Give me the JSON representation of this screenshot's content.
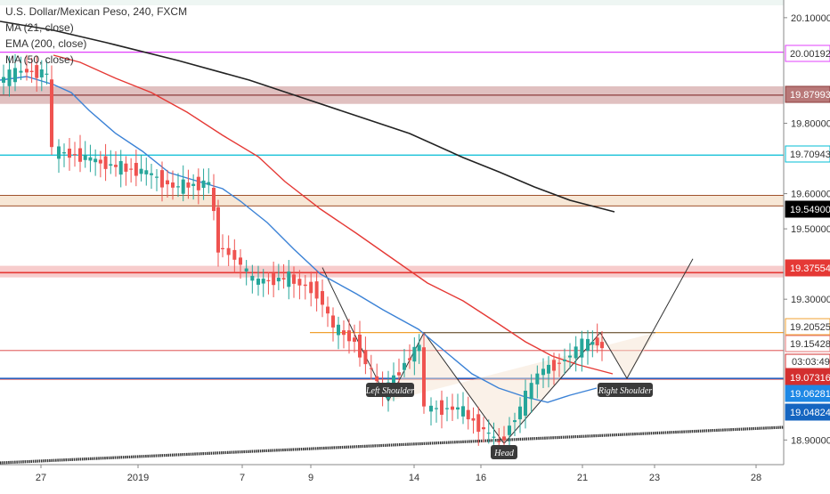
{
  "header": {
    "title": "U.S. Dollar/Mexican Peso, 240, FXCM"
  },
  "indicators": [
    {
      "label": "MA (21, close)",
      "color": "#e53935"
    },
    {
      "label": "EMA (200, close)",
      "color": "#222222"
    },
    {
      "label": "MA (50, close)",
      "color": "#1e88e5"
    }
  ],
  "chart_data": {
    "type": "candlestick",
    "x_ticks": [
      "27",
      "2019",
      "7",
      "9",
      "14",
      "16",
      "21",
      "23",
      "28"
    ],
    "y_ticks": [
      "20.10000",
      "19.80000",
      "19.60000",
      "19.50000",
      "19.30000",
      "18.90000"
    ],
    "ylim": [
      18.83,
      20.17
    ],
    "horizontal_levels": [
      {
        "value": 20.00192,
        "label": "20.00192",
        "color": "#e040fb"
      },
      {
        "value": 19.87993,
        "label": "19.87993",
        "color": "#8d3b3b"
      },
      {
        "value": 19.70943,
        "label": "19.70943",
        "color": "#00bcd4"
      },
      {
        "value": 19.549,
        "label": "19.54900",
        "color": "#000000"
      },
      {
        "value": 19.37554,
        "label": "19.37554",
        "color": "#e53935"
      },
      {
        "value": 19.20525,
        "label": "19.20525",
        "color": "#f0a030"
      },
      {
        "value": 19.15428,
        "label": "19.15428",
        "color": "#e57373"
      },
      {
        "value": 19.07316,
        "label": "19.07316",
        "color": "#d32f2f"
      },
      {
        "value": 19.06281,
        "label": "19.06281",
        "color": "#1e88e5"
      },
      {
        "value": 19.04824,
        "label": "19.04824",
        "color": "#1565c0"
      }
    ],
    "countdown": "03:03:49",
    "pattern_labels": [
      "Left Shoulder",
      "Head",
      "Right Shoulder"
    ]
  },
  "colors": {
    "up": "#26a69a",
    "down": "#ef5350"
  }
}
